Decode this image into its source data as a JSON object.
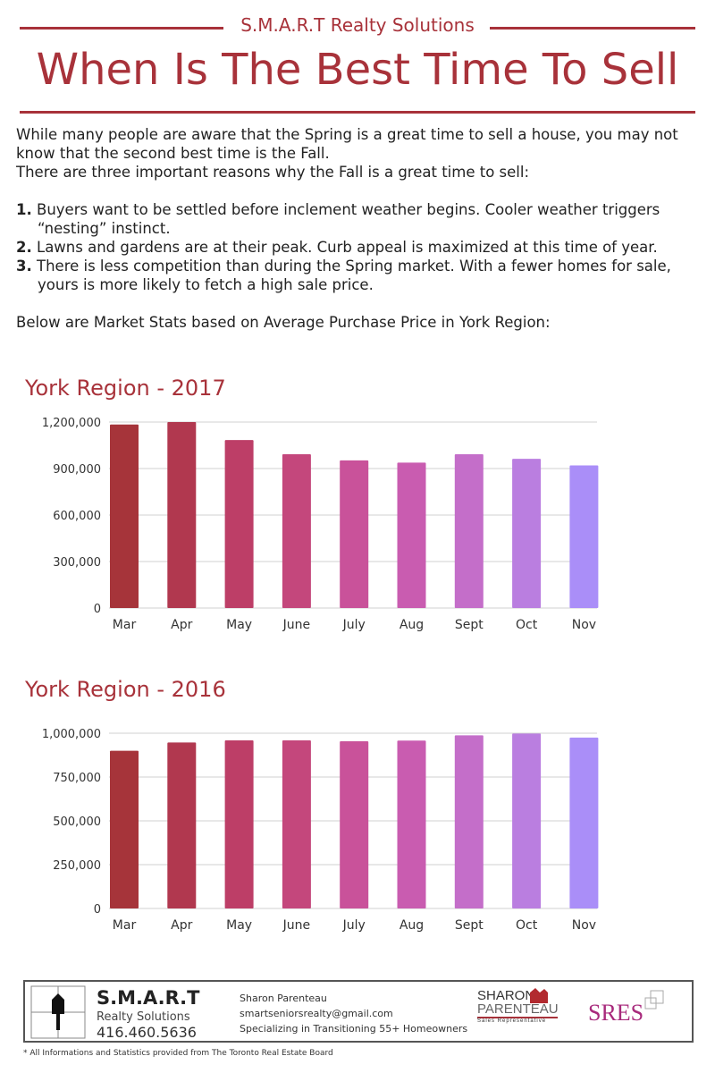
{
  "header": {
    "brand": "S.M.A.R.T Realty Solutions",
    "title": "When Is The Best Time To Sell"
  },
  "intro": {
    "p1": "While many people are aware that the Spring is a great time to sell a house, you may not know that the second best time is the Fall.",
    "p2": "There are three important reasons why the Fall is a great time to sell:",
    "reasons": [
      {
        "num": "1.",
        "text": "Buyers want to be settled before inclement weather begins. Cooler weather triggers",
        "cont": "“nesting” instinct."
      },
      {
        "num": "2.",
        "text": "Lawns and gardens are at their peak. Curb appeal is maximized at this time of year.",
        "cont": ""
      },
      {
        "num": "3.",
        "text": "There is less competition than during the Spring market. With a fewer homes for sale,",
        "cont": "yours is more likely to fetch a high sale price."
      }
    ],
    "p3": "Below are Market Stats based on Average Purchase Price in York Region:"
  },
  "colors": {
    "accent": "#a8323a",
    "bars": [
      "#a6343a",
      "#b1384f",
      "#bd3e67",
      "#c4477c",
      "#c9529a",
      "#c95cb0",
      "#c46ec9",
      "#ba7ee0",
      "#aa8ef8"
    ]
  },
  "chart_data": [
    {
      "type": "bar",
      "title": "York Region - 2017",
      "categories": [
        "Mar",
        "Apr",
        "May",
        "June",
        "July",
        "Aug",
        "Sept",
        "Oct",
        "Nov"
      ],
      "values": [
        1184000,
        1200000,
        1084000,
        992000,
        953000,
        938000,
        992000,
        963000,
        920000
      ],
      "ylim": [
        0,
        1200000
      ],
      "yticks": [
        "0",
        "300,000",
        "600,000",
        "900,000",
        "1,200,000"
      ],
      "ytick_values": [
        0,
        300000,
        600000,
        900000,
        1200000
      ],
      "grid": true
    },
    {
      "type": "bar",
      "title": "York Region - 2016",
      "categories": [
        "Mar",
        "Apr",
        "May",
        "June",
        "July",
        "Aug",
        "Sept",
        "Oct",
        "Nov"
      ],
      "values": [
        900000,
        947000,
        959000,
        959000,
        954000,
        958000,
        988000,
        998000,
        975000
      ],
      "ylim": [
        0,
        1000000
      ],
      "yticks": [
        "0",
        "250,000",
        "500,000",
        "750,000",
        "1,000,000"
      ],
      "ytick_values": [
        0,
        250000,
        500000,
        750000,
        1000000
      ],
      "grid": true
    }
  ],
  "footer": {
    "brand": "S.M.A.R.T",
    "brand_sub": "Realty Solutions",
    "phone": "416.460.5636",
    "name": "Sharon Parenteau",
    "email": "smartseniorsrealty@gmail.com",
    "tagline": "Specializing in Transitioning 55+ Homeowners",
    "logo_first": "SHARON",
    "logo_last": "PARENTEAU",
    "logo_role": "Sales Representative",
    "sres": "SRES",
    "note": "* All Informations and Statistics provided from The Toronto Real Estate Board"
  }
}
